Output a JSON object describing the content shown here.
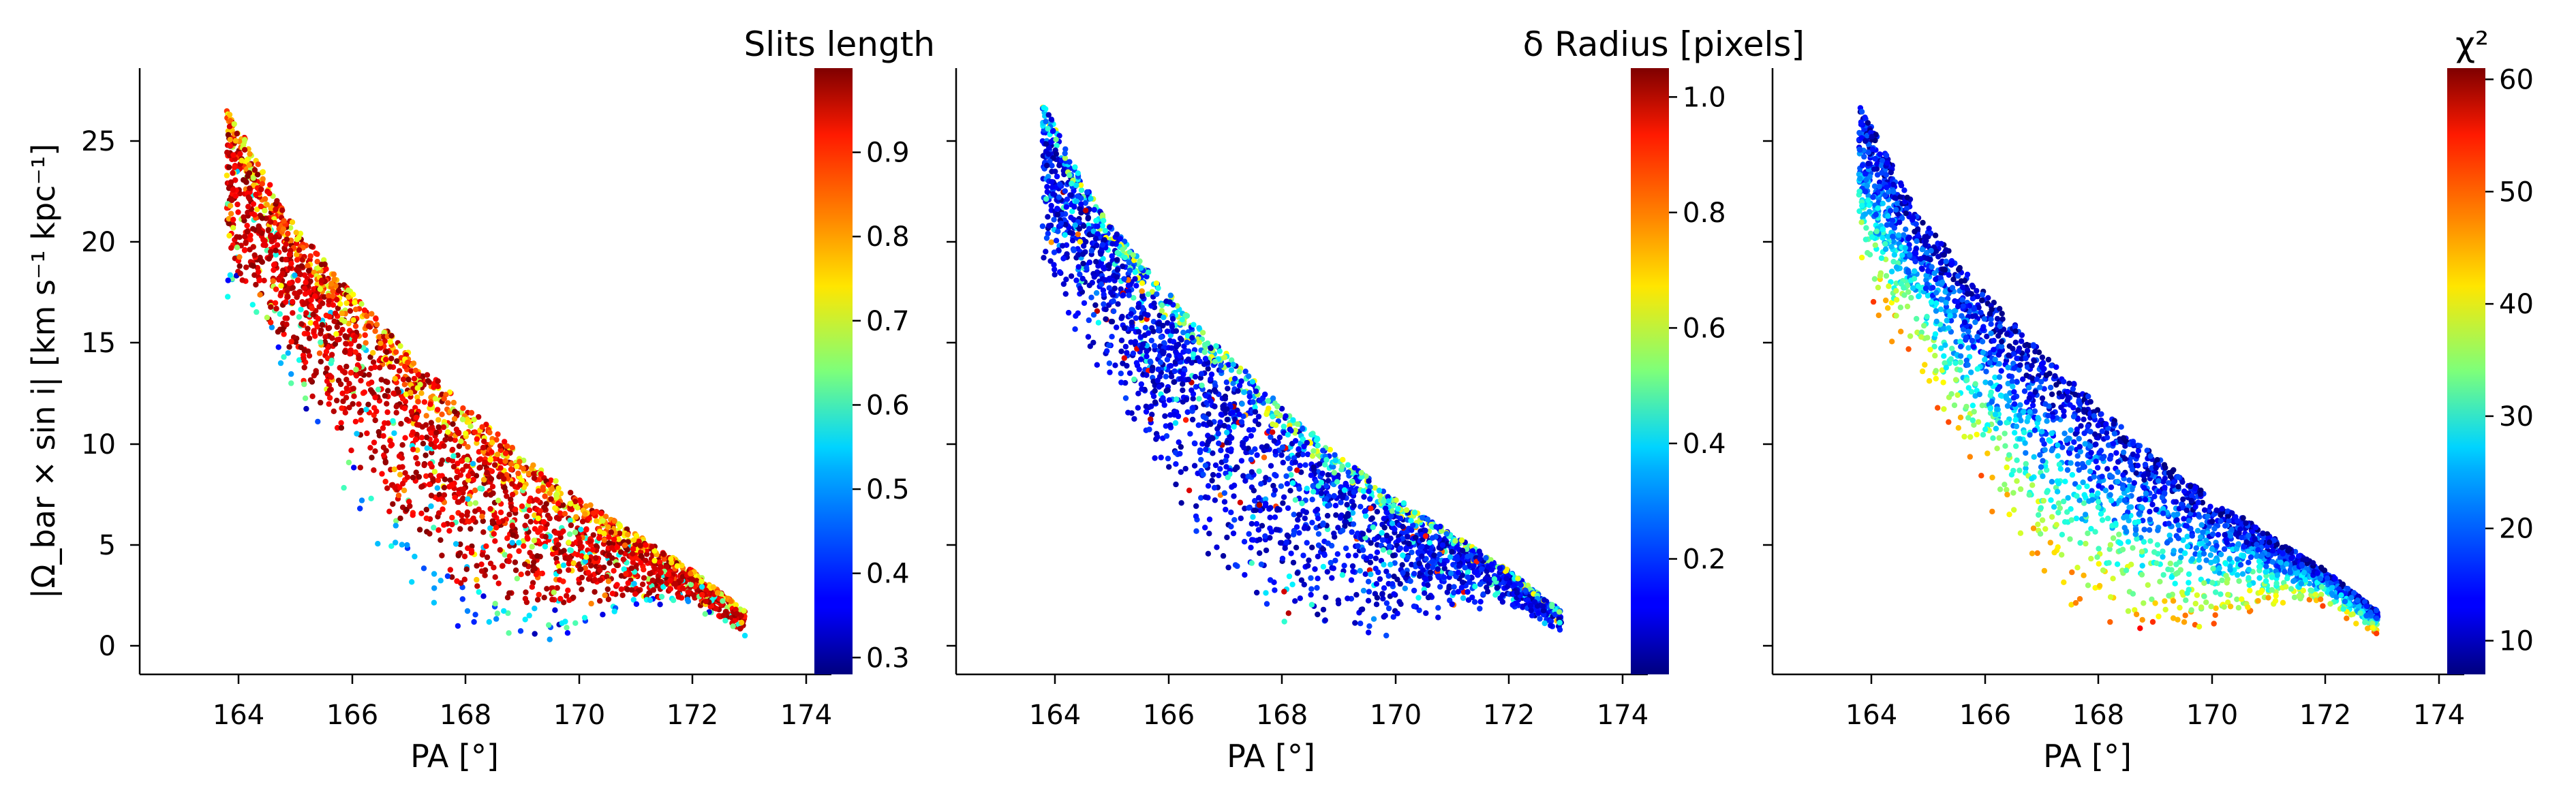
{
  "chart_data": [
    {
      "type": "scatter",
      "panel": "left",
      "xlabel": "PA [°]",
      "ylabel": "|Ω_bar × sin i|  [km s⁻¹ kpc⁻¹]",
      "xlim": [
        162.5,
        174.5
      ],
      "ylim": [
        -1.3,
        28.5
      ],
      "xticks": [
        "164",
        "166",
        "168",
        "170",
        "172",
        "174"
      ],
      "yticks": [
        "0",
        "5",
        "10",
        "15",
        "20",
        "25"
      ],
      "colorbar": {
        "title": "Slits length",
        "range": [
          0.28,
          1.0
        ],
        "ticks": [
          "0.3",
          "0.4",
          "0.5",
          "0.6",
          "0.7",
          "0.8",
          "0.9"
        ],
        "colormap": "jet"
      },
      "x": [
        164.0,
        165.0,
        166.0,
        167.0,
        168.0,
        169.0,
        170.0,
        171.0,
        172.0,
        173.0
      ],
      "y_upper_envelope": [
        26.8,
        21.5,
        18.0,
        15.0,
        12.3,
        9.8,
        7.6,
        5.8,
        4.0,
        1.8
      ],
      "y_lower_envelope": [
        17.0,
        13.0,
        7.5,
        3.5,
        0.5,
        0.2,
        0.3,
        1.5,
        2.0,
        0.5
      ],
      "color_trend": "high values (red) along upper edge and centre; low values (blue) at the lower edge"
    },
    {
      "type": "scatter",
      "panel": "middle",
      "xlabel": "PA [°]",
      "xlim": [
        162.5,
        174.5
      ],
      "ylim": [
        -1.3,
        28.5
      ],
      "xticks": [
        "164",
        "166",
        "168",
        "170",
        "172",
        "174"
      ],
      "colorbar": {
        "title": "δ Radius [pixels]",
        "range": [
          0.0,
          1.05
        ],
        "ticks": [
          "0.2",
          "0.4",
          "0.6",
          "0.8",
          "1.0"
        ],
        "colormap": "jet"
      },
      "x": [
        164.0,
        165.0,
        166.0,
        167.0,
        168.0,
        169.0,
        170.0,
        171.0,
        172.0,
        173.0
      ],
      "y_upper_envelope": [
        26.8,
        21.5,
        18.0,
        15.0,
        12.3,
        9.8,
        7.6,
        5.8,
        4.0,
        1.8
      ],
      "y_lower_envelope": [
        17.0,
        13.0,
        7.5,
        3.5,
        0.5,
        0.2,
        0.3,
        1.5,
        2.0,
        0.5
      ],
      "color_trend": "mostly low values (blue); cyan/yellow points along the upper edge"
    },
    {
      "type": "scatter",
      "panel": "right",
      "xlabel": "PA [°]",
      "xlim": [
        162.5,
        174.5
      ],
      "ylim": [
        -1.3,
        28.5
      ],
      "xticks": [
        "164",
        "166",
        "168",
        "170",
        "172",
        "174"
      ],
      "colorbar": {
        "title": "χ²",
        "range": [
          7,
          61
        ],
        "ticks": [
          "10",
          "20",
          "30",
          "40",
          "50",
          "60"
        ],
        "colormap": "jet"
      },
      "x": [
        164.0,
        165.0,
        166.0,
        167.0,
        168.0,
        169.0,
        170.0,
        171.0,
        172.0,
        173.0
      ],
      "y_upper_envelope": [
        26.8,
        21.5,
        18.0,
        15.0,
        12.3,
        9.8,
        7.6,
        5.8,
        4.0,
        1.8
      ],
      "y_lower_envelope": [
        17.0,
        13.0,
        7.5,
        3.5,
        0.5,
        0.2,
        0.3,
        1.5,
        2.0,
        0.5
      ],
      "color_trend": "low values (blue) along upper edge; high values (red/yellow) in the lower interior"
    }
  ]
}
